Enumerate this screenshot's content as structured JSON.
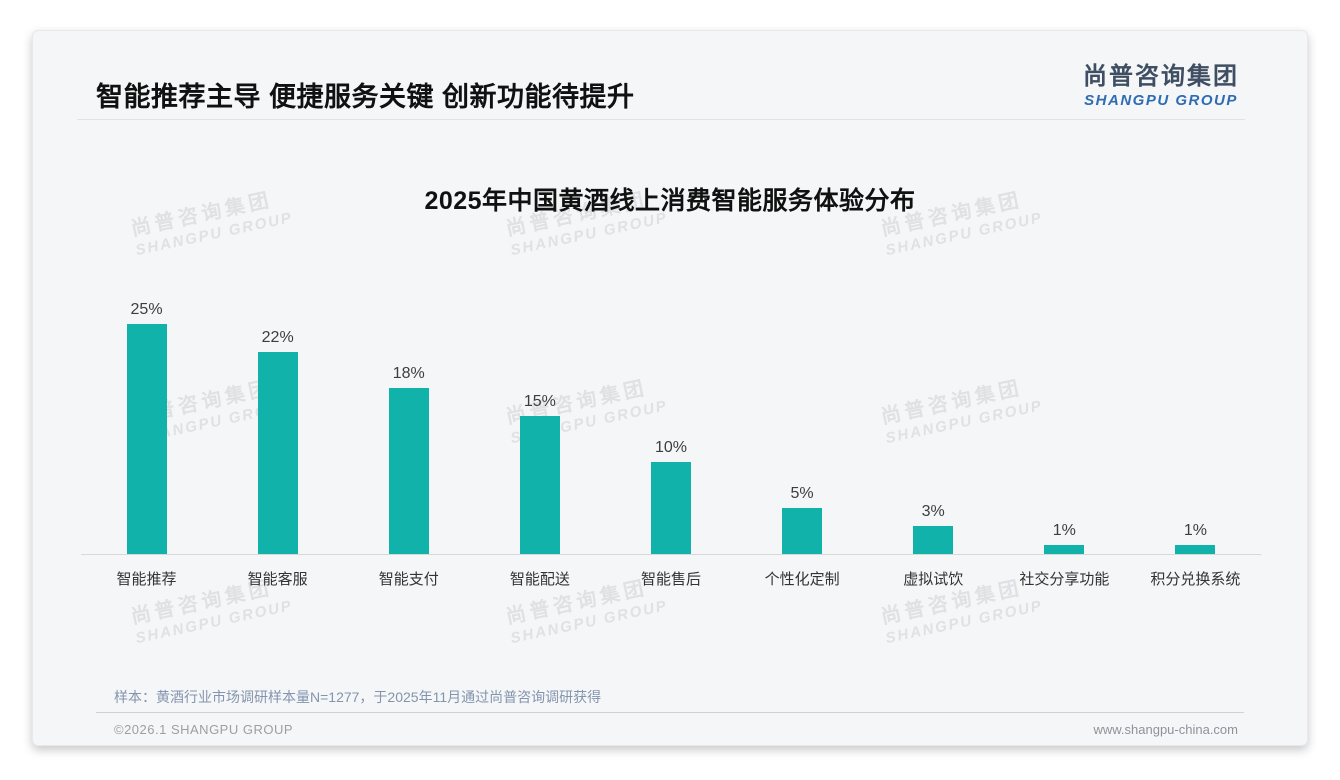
{
  "page": {
    "title": "智能推荐主导 便捷服务关键 创新功能待提升",
    "logo": {
      "cn": "尚普咨询集团",
      "en": "SHANGPU GROUP"
    },
    "watermark": {
      "line1": "尚普咨询集团",
      "line2": "SHANGPU GROUP"
    },
    "footnote": "样本：黄酒行业市场调研样本量N=1277，于2025年11月通过尚普咨询调研获得",
    "copyright": "©2026.1 SHANGPU GROUP",
    "website": "www.shangpu-china.com"
  },
  "chart_data": {
    "type": "bar",
    "title": "2025年中国黄酒线上消费智能服务体验分布",
    "categories": [
      "智能推荐",
      "智能客服",
      "智能支付",
      "智能配送",
      "智能售后",
      "个性化定制",
      "虚拟试饮",
      "社交分享功能",
      "积分兑换系统"
    ],
    "values": [
      25,
      22,
      18,
      15,
      10,
      5,
      3,
      1,
      1
    ],
    "unit": "%",
    "data_labels": [
      "25%",
      "22%",
      "18%",
      "15%",
      "10%",
      "5%",
      "3%",
      "1%",
      "1%"
    ],
    "xlabel": "",
    "ylabel": "",
    "ylim": [
      0,
      27
    ],
    "grid": false,
    "legend": false,
    "bar_color": "#11b2aa"
  },
  "colors": {
    "bar": "#11b2aa",
    "slide_background": "#f5f6f7",
    "logo_cn": "#3f4e63",
    "logo_en": "#2f6cb4",
    "footnote_text": "#8494ae",
    "watermark": "#e0e1e4"
  }
}
